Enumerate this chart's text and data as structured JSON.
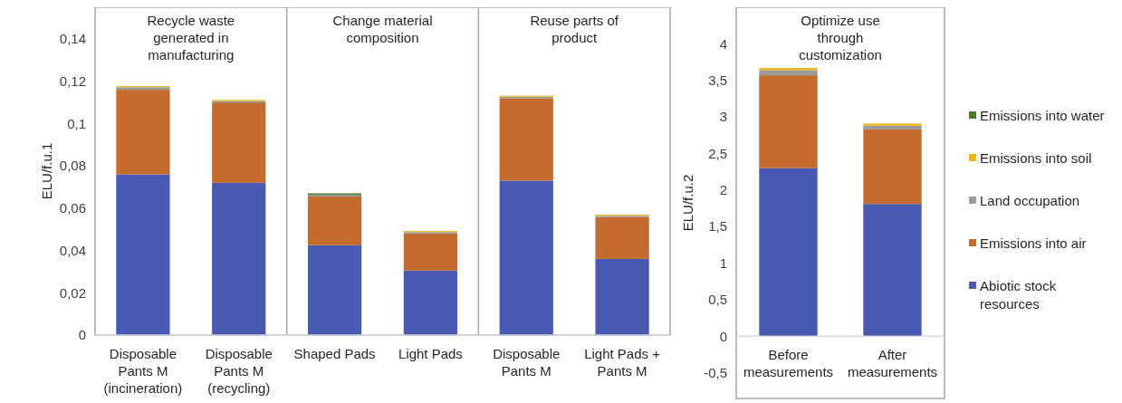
{
  "chart_data": [
    {
      "type": "bar",
      "stacked": true,
      "ylabel": "ELU/f.u.1",
      "grid": false,
      "categories": [
        "Disposable\nPants M\n(incineration)",
        "Disposable\nPants M\n(recycling)",
        "Shaped Pads",
        "Light Pads",
        "Disposable\nPants M",
        "Light Pads +\nPants M"
      ],
      "annotations": [
        "Recycle waste\ngenerated in\nmanufacturing",
        "Change material\ncomposition",
        "Reuse parts of\nproduct"
      ],
      "ylim": [
        0,
        0.155
      ],
      "yticks": [
        {
          "value": 0,
          "label": "0"
        },
        {
          "value": 0.02,
          "label": "0,02"
        },
        {
          "value": 0.04,
          "label": "0,04"
        },
        {
          "value": 0.06,
          "label": "0,06"
        },
        {
          "value": 0.08,
          "label": "0,08"
        },
        {
          "value": 0.1,
          "label": "0,1"
        },
        {
          "value": 0.12,
          "label": "0,12"
        },
        {
          "value": 0.14,
          "label": "0,14"
        }
      ],
      "series": [
        {
          "color": "#4a5ab4",
          "values": [
            0.076,
            0.072,
            0.0425,
            0.0305,
            0.073,
            0.036
          ]
        },
        {
          "color": "#c46c30",
          "values": [
            0.04,
            0.038,
            0.023,
            0.0175,
            0.039,
            0.0198
          ]
        },
        {
          "color": "#9b9b9b",
          "values": [
            0.0012,
            0.0007,
            0.0007,
            0.0007,
            0.0007,
            0.0006
          ]
        },
        {
          "color": "#e8b820",
          "values": [
            0.0005,
            0.0005,
            0,
            0.0005,
            0.0005,
            0.0005
          ]
        },
        {
          "color": "#4c7a2c",
          "values": [
            0,
            0,
            0.0008,
            0,
            0,
            0
          ]
        }
      ]
    },
    {
      "type": "bar",
      "stacked": true,
      "ylabel": "ELU/f.u.2",
      "legend": "right",
      "grid": false,
      "categories": [
        "Before\nmeasurements",
        "After\nmeasurements"
      ],
      "annotations": [
        "Optimize use\nthrough\ncustomization"
      ],
      "ylim": [
        -0.85,
        4.5
      ],
      "yticks": [
        {
          "value": -0.5,
          "label": "-0,5"
        },
        0,
        {
          "value": 0.5,
          "label": "0,5"
        },
        1,
        {
          "value": 1.5,
          "label": "1,5"
        },
        2,
        {
          "value": 2.5,
          "label": "2,5"
        },
        3,
        {
          "value": 3.5,
          "label": "3,5"
        },
        4
      ],
      "series": [
        {
          "name": "Abiotic stock resources",
          "color": "#4a5ab4",
          "values": [
            2.3,
            1.81
          ]
        },
        {
          "name": "Emissions into air",
          "color": "#c46c30",
          "values": [
            1.27,
            1.02
          ]
        },
        {
          "name": "Land occupation",
          "color": "#9b9b9b",
          "values": [
            0.07,
            0.05
          ]
        },
        {
          "name": "Emissions into soil",
          "color": "#e8b820",
          "values": [
            0.03,
            0.03
          ]
        },
        {
          "name": "Emissions into water",
          "color": "#4c7a2c",
          "values": [
            0,
            0
          ]
        }
      ]
    }
  ]
}
